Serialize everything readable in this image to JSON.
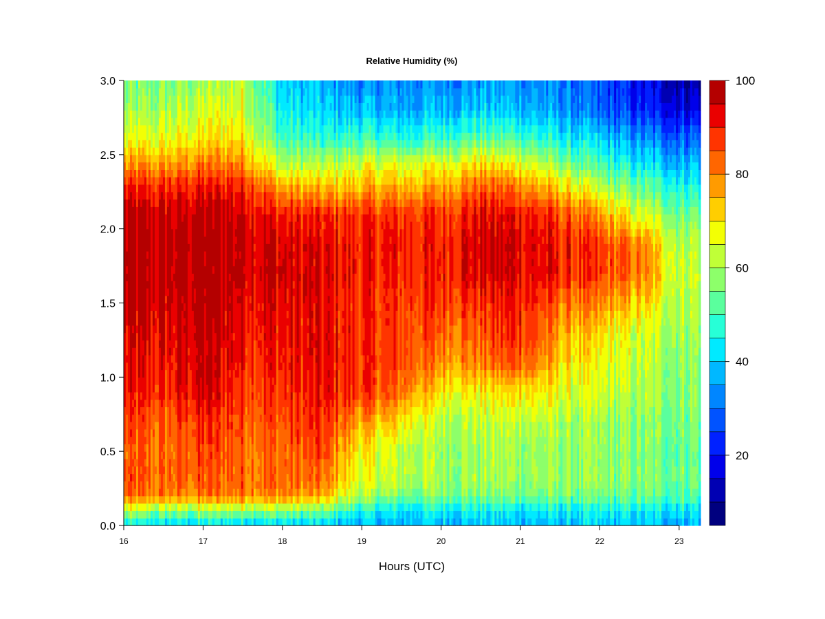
{
  "chart_data": {
    "type": "heatmap",
    "title": "Relative Humidity (%)",
    "xlabel": "Hours (UTC)",
    "ylabel": "",
    "xlim": [
      16,
      23.27
    ],
    "ylim": [
      0.0,
      3.0
    ],
    "x_ticks": [
      "16",
      "17",
      "18",
      "19",
      "20",
      "21",
      "22",
      "23"
    ],
    "y_ticks": [
      "0.0",
      "0.5",
      "1.0",
      "1.5",
      "2.0",
      "2.5",
      "3.0"
    ],
    "x": [
      16.0,
      16.5,
      17.0,
      17.5,
      18.0,
      18.5,
      19.0,
      19.5,
      20.0,
      20.5,
      21.0,
      21.5,
      22.0,
      22.5,
      23.0,
      23.27
    ],
    "y": [
      0.0,
      0.1,
      0.2,
      0.3,
      0.5,
      0.7,
      0.9,
      1.1,
      1.3,
      1.5,
      1.7,
      1.9,
      2.1,
      2.3,
      2.45,
      2.6,
      2.8,
      3.0
    ],
    "z": [
      [
        42,
        40,
        40,
        40,
        39,
        38,
        36,
        37,
        38,
        38,
        38,
        38,
        38,
        38,
        38,
        38
      ],
      [
        60,
        57,
        58,
        60,
        58,
        54,
        45,
        42,
        44,
        44,
        43,
        43,
        43,
        43,
        43,
        43
      ],
      [
        82,
        80,
        80,
        82,
        80,
        75,
        60,
        55,
        57,
        56,
        55,
        55,
        54,
        53,
        52,
        52
      ],
      [
        84,
        82,
        83,
        84,
        82,
        80,
        65,
        62,
        60,
        59,
        59,
        58,
        57,
        56,
        55,
        55
      ],
      [
        83,
        81,
        86,
        84,
        82,
        86,
        68,
        62,
        60,
        60,
        60,
        58,
        57,
        56,
        54,
        54
      ],
      [
        86,
        83,
        88,
        86,
        85,
        88,
        76,
        70,
        62,
        62,
        63,
        60,
        58,
        57,
        56,
        56
      ],
      [
        90,
        88,
        95,
        88,
        88,
        91,
        88,
        82,
        70,
        68,
        72,
        66,
        63,
        60,
        58,
        58
      ],
      [
        92,
        90,
        96,
        91,
        90,
        92,
        88,
        86,
        80,
        80,
        86,
        72,
        66,
        62,
        59,
        59
      ],
      [
        93,
        92,
        97,
        93,
        91,
        92,
        88,
        86,
        84,
        84,
        90,
        76,
        70,
        64,
        60,
        60
      ],
      [
        96,
        95,
        98,
        95,
        93,
        92,
        88,
        87,
        88,
        88,
        92,
        82,
        78,
        72,
        62,
        62
      ],
      [
        97,
        97,
        98,
        97,
        95,
        93,
        90,
        89,
        90,
        95,
        94,
        90,
        86,
        80,
        64,
        64
      ],
      [
        97,
        97,
        98,
        97,
        94,
        92,
        90,
        90,
        90,
        95,
        94,
        90,
        86,
        80,
        62,
        62
      ],
      [
        96,
        96,
        97,
        96,
        90,
        88,
        88,
        88,
        88,
        93,
        92,
        86,
        76,
        64,
        56,
        56
      ],
      [
        88,
        88,
        90,
        90,
        75,
        72,
        74,
        74,
        76,
        82,
        80,
        70,
        60,
        52,
        46,
        46
      ],
      [
        76,
        76,
        79,
        80,
        60,
        60,
        64,
        64,
        66,
        70,
        66,
        56,
        48,
        42,
        38,
        38
      ],
      [
        66,
        66,
        70,
        72,
        50,
        48,
        50,
        48,
        50,
        54,
        52,
        45,
        40,
        34,
        30,
        30
      ],
      [
        58,
        60,
        64,
        66,
        44,
        40,
        38,
        36,
        38,
        40,
        38,
        34,
        28,
        22,
        18,
        18
      ],
      [
        54,
        56,
        58,
        62,
        40,
        36,
        32,
        34,
        34,
        34,
        34,
        32,
        26,
        18,
        12,
        12
      ]
    ],
    "colorbar": {
      "min": 5,
      "max": 100,
      "levels": [
        5,
        10,
        15,
        20,
        25,
        30,
        35,
        40,
        45,
        50,
        55,
        60,
        65,
        70,
        75,
        80,
        85,
        90,
        95,
        100
      ],
      "colors": [
        "#00007f",
        "#0000b3",
        "#0000ea",
        "#0021ff",
        "#0053ff",
        "#0086ff",
        "#00b8ff",
        "#00eaff",
        "#27ffd7",
        "#5aff9d",
        "#8dff6a",
        "#c0ff37",
        "#f3ff04",
        "#ffce00",
        "#ff9b00",
        "#ff6600",
        "#ff3400",
        "#ea0000",
        "#b40000",
        "#7f0000"
      ],
      "tick_labels": [
        "20",
        "40",
        "60",
        "80",
        "100"
      ]
    }
  }
}
